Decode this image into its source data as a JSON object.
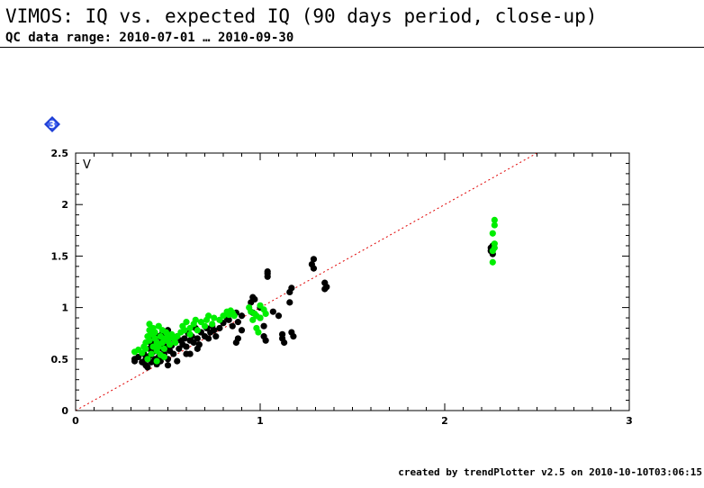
{
  "header": {
    "title": "VIMOS: IQ vs. expected IQ (90 days period, close-up)",
    "subtitle": "QC data range: 2010-07-01 … 2010-09-30"
  },
  "badge": {
    "icon": "numbered-diamond-icon",
    "label": "3",
    "color": "#1f3fd6"
  },
  "footer": {
    "text": "created by trendPlotter v2.5 on 2010-10-10T03:06:15"
  },
  "colors": {
    "black_series": "#000000",
    "green_series": "#00ee00",
    "reference_line": "#e00000"
  },
  "chart_data": {
    "type": "scatter",
    "panel_label": "V",
    "xlim": [
      0,
      3
    ],
    "ylim": [
      0,
      2.5
    ],
    "x_ticks": [
      "0",
      "1",
      "2",
      "3"
    ],
    "y_ticks": [
      "0",
      "0.5",
      "1",
      "1.5",
      "2",
      "2.5"
    ],
    "grid": false,
    "reference_line": {
      "style": "dotted",
      "slope": 1,
      "intercept": 0
    },
    "series": [
      {
        "color": "#000000",
        "points": [
          [
            0.32,
            0.48
          ],
          [
            0.32,
            0.5
          ],
          [
            0.34,
            0.52
          ],
          [
            0.36,
            0.47
          ],
          [
            0.37,
            0.55
          ],
          [
            0.38,
            0.5
          ],
          [
            0.38,
            0.44
          ],
          [
            0.39,
            0.42
          ],
          [
            0.4,
            0.6
          ],
          [
            0.4,
            0.53
          ],
          [
            0.41,
            0.47
          ],
          [
            0.41,
            0.65
          ],
          [
            0.42,
            0.7
          ],
          [
            0.42,
            0.57
          ],
          [
            0.43,
            0.5
          ],
          [
            0.43,
            0.62
          ],
          [
            0.44,
            0.45
          ],
          [
            0.44,
            0.58
          ],
          [
            0.45,
            0.72
          ],
          [
            0.45,
            0.52
          ],
          [
            0.46,
            0.66
          ],
          [
            0.46,
            0.48
          ],
          [
            0.47,
            0.6
          ],
          [
            0.47,
            0.75
          ],
          [
            0.48,
            0.55
          ],
          [
            0.48,
            0.68
          ],
          [
            0.49,
            0.62
          ],
          [
            0.5,
            0.5
          ],
          [
            0.5,
            0.78
          ],
          [
            0.51,
            0.58
          ],
          [
            0.52,
            0.7
          ],
          [
            0.52,
            0.63
          ],
          [
            0.53,
            0.55
          ],
          [
            0.54,
            0.66
          ],
          [
            0.55,
            0.72
          ],
          [
            0.56,
            0.6
          ],
          [
            0.57,
            0.68
          ],
          [
            0.58,
            0.64
          ],
          [
            0.59,
            0.7
          ],
          [
            0.6,
            0.62
          ],
          [
            0.6,
            0.55
          ],
          [
            0.61,
            0.75
          ],
          [
            0.62,
            0.68
          ],
          [
            0.63,
            0.72
          ],
          [
            0.64,
            0.66
          ],
          [
            0.65,
            0.8
          ],
          [
            0.66,
            0.7
          ],
          [
            0.67,
            0.64
          ],
          [
            0.68,
            0.76
          ],
          [
            0.7,
            0.72
          ],
          [
            0.71,
            0.8
          ],
          [
            0.72,
            0.7
          ],
          [
            0.73,
            0.76
          ],
          [
            0.74,
            0.82
          ],
          [
            0.75,
            0.78
          ],
          [
            0.76,
            0.72
          ],
          [
            0.78,
            0.8
          ],
          [
            0.8,
            0.85
          ],
          [
            0.82,
            0.9
          ],
          [
            0.83,
            0.88
          ],
          [
            0.85,
            0.82
          ],
          [
            0.87,
            0.95
          ],
          [
            0.88,
            0.86
          ],
          [
            0.9,
            0.78
          ],
          [
            0.9,
            0.92
          ],
          [
            0.88,
            0.7
          ],
          [
            0.87,
            0.66
          ],
          [
            0.95,
            1.05
          ],
          [
            0.96,
            1.1
          ],
          [
            0.96,
            0.95
          ],
          [
            0.97,
            1.08
          ],
          [
            1.0,
            1.0
          ],
          [
            1.0,
            0.9
          ],
          [
            1.02,
            0.82
          ],
          [
            1.02,
            0.72
          ],
          [
            1.03,
            0.68
          ],
          [
            1.04,
            1.3
          ],
          [
            1.04,
            1.33
          ],
          [
            1.04,
            1.35
          ],
          [
            1.07,
            0.96
          ],
          [
            1.1,
            0.92
          ],
          [
            1.12,
            0.74
          ],
          [
            1.12,
            0.7
          ],
          [
            1.13,
            0.66
          ],
          [
            1.16,
            1.05
          ],
          [
            1.16,
            1.15
          ],
          [
            1.17,
            1.19
          ],
          [
            1.17,
            0.76
          ],
          [
            1.18,
            0.72
          ],
          [
            1.28,
            1.42
          ],
          [
            1.29,
            1.47
          ],
          [
            1.29,
            1.38
          ],
          [
            1.35,
            1.24
          ],
          [
            1.35,
            1.18
          ],
          [
            1.36,
            1.2
          ],
          [
            0.5,
            0.44
          ],
          [
            0.55,
            0.48
          ],
          [
            0.62,
            0.55
          ],
          [
            0.66,
            0.6
          ],
          [
            2.25,
            1.58
          ],
          [
            2.25,
            1.55
          ],
          [
            2.26,
            1.6
          ],
          [
            2.26,
            1.52
          ]
        ]
      },
      {
        "color": "#00ee00",
        "points": [
          [
            0.32,
            0.57
          ],
          [
            0.34,
            0.59
          ],
          [
            0.36,
            0.56
          ],
          [
            0.37,
            0.62
          ],
          [
            0.38,
            0.66
          ],
          [
            0.38,
            0.6
          ],
          [
            0.39,
            0.72
          ],
          [
            0.39,
            0.5
          ],
          [
            0.4,
            0.78
          ],
          [
            0.4,
            0.68
          ],
          [
            0.4,
            0.84
          ],
          [
            0.41,
            0.74
          ],
          [
            0.41,
            0.55
          ],
          [
            0.42,
            0.8
          ],
          [
            0.42,
            0.62
          ],
          [
            0.43,
            0.7
          ],
          [
            0.43,
            0.76
          ],
          [
            0.44,
            0.58
          ],
          [
            0.44,
            0.66
          ],
          [
            0.45,
            0.82
          ],
          [
            0.45,
            0.62
          ],
          [
            0.46,
            0.72
          ],
          [
            0.46,
            0.54
          ],
          [
            0.47,
            0.78
          ],
          [
            0.47,
            0.66
          ],
          [
            0.48,
            0.7
          ],
          [
            0.48,
            0.6
          ],
          [
            0.49,
            0.76
          ],
          [
            0.5,
            0.68
          ],
          [
            0.5,
            0.72
          ],
          [
            0.51,
            0.64
          ],
          [
            0.52,
            0.74
          ],
          [
            0.53,
            0.7
          ],
          [
            0.54,
            0.66
          ],
          [
            0.55,
            0.72
          ],
          [
            0.57,
            0.76
          ],
          [
            0.58,
            0.82
          ],
          [
            0.59,
            0.78
          ],
          [
            0.6,
            0.86
          ],
          [
            0.62,
            0.8
          ],
          [
            0.62,
            0.74
          ],
          [
            0.64,
            0.84
          ],
          [
            0.65,
            0.88
          ],
          [
            0.66,
            0.78
          ],
          [
            0.68,
            0.86
          ],
          [
            0.7,
            0.82
          ],
          [
            0.71,
            0.88
          ],
          [
            0.72,
            0.92
          ],
          [
            0.74,
            0.84
          ],
          [
            0.75,
            0.9
          ],
          [
            0.78,
            0.88
          ],
          [
            0.8,
            0.92
          ],
          [
            0.82,
            0.96
          ],
          [
            0.83,
            0.93
          ],
          [
            0.84,
            0.97
          ],
          [
            0.85,
            0.95
          ],
          [
            0.86,
            0.92
          ],
          [
            0.94,
            1.0
          ],
          [
            0.95,
            0.96
          ],
          [
            0.96,
            0.88
          ],
          [
            0.97,
            0.94
          ],
          [
            0.98,
            0.92
          ],
          [
            0.98,
            0.8
          ],
          [
            0.99,
            0.76
          ],
          [
            1.0,
            0.9
          ],
          [
            1.0,
            1.02
          ],
          [
            1.02,
            0.98
          ],
          [
            1.03,
            0.94
          ],
          [
            2.27,
            1.85
          ],
          [
            2.27,
            1.8
          ],
          [
            2.26,
            1.72
          ],
          [
            2.27,
            1.62
          ],
          [
            2.27,
            1.58
          ],
          [
            2.26,
            1.55
          ],
          [
            2.26,
            1.44
          ],
          [
            0.44,
            0.48
          ],
          [
            0.48,
            0.52
          ]
        ]
      }
    ]
  }
}
